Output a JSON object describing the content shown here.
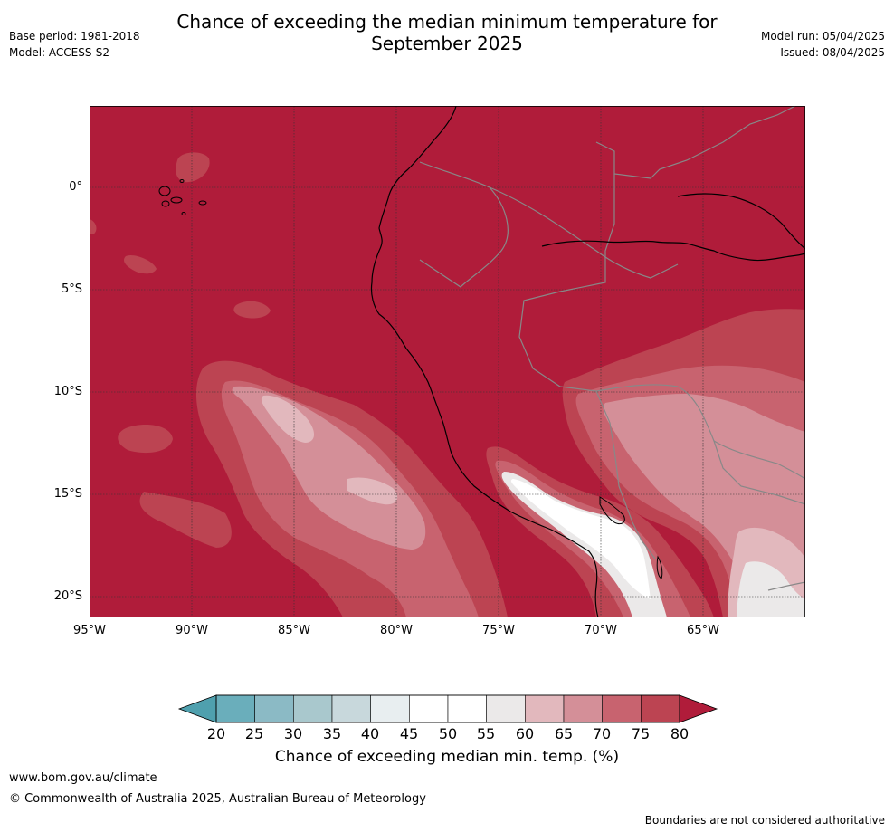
{
  "title_line1": "Chance of exceeding the median minimum temperature for",
  "title_line2": "September 2025",
  "base_period": "Base period: 1981-2018",
  "model": "Model: ACCESS-S2",
  "model_run": "Model run: 05/04/2025",
  "issued": "Issued: 08/04/2025",
  "lat_labels": [
    "0°",
    "5°S",
    "10°S",
    "15°S",
    "20°S"
  ],
  "lon_labels": [
    "95°W",
    "90°W",
    "85°W",
    "80°W",
    "75°W",
    "70°W",
    "65°W"
  ],
  "colorbar": {
    "ticks": [
      "20",
      "25",
      "30",
      "35",
      "40",
      "45",
      "50",
      "55",
      "60",
      "65",
      "70",
      "75",
      "80"
    ],
    "colors": [
      "#4fa0ae",
      "#6aaebb",
      "#8bbac5",
      "#a9c8cd",
      "#c8d8dc",
      "#e8eef0",
      "#ffffff",
      "#ffffff",
      "#ebe9e9",
      "#e2b8bd",
      "#d48f98",
      "#c8636f",
      "#bc4452",
      "#b01c3a"
    ],
    "label": "Chance of exceeding median min. temp. (%)"
  },
  "footer_url": "www.bom.gov.au/climate",
  "footer_copyright": "© Commonwealth of Australia 2025, Australian Bureau of Meteorology",
  "disclaimer": "Boundaries are not considered authoritative"
}
